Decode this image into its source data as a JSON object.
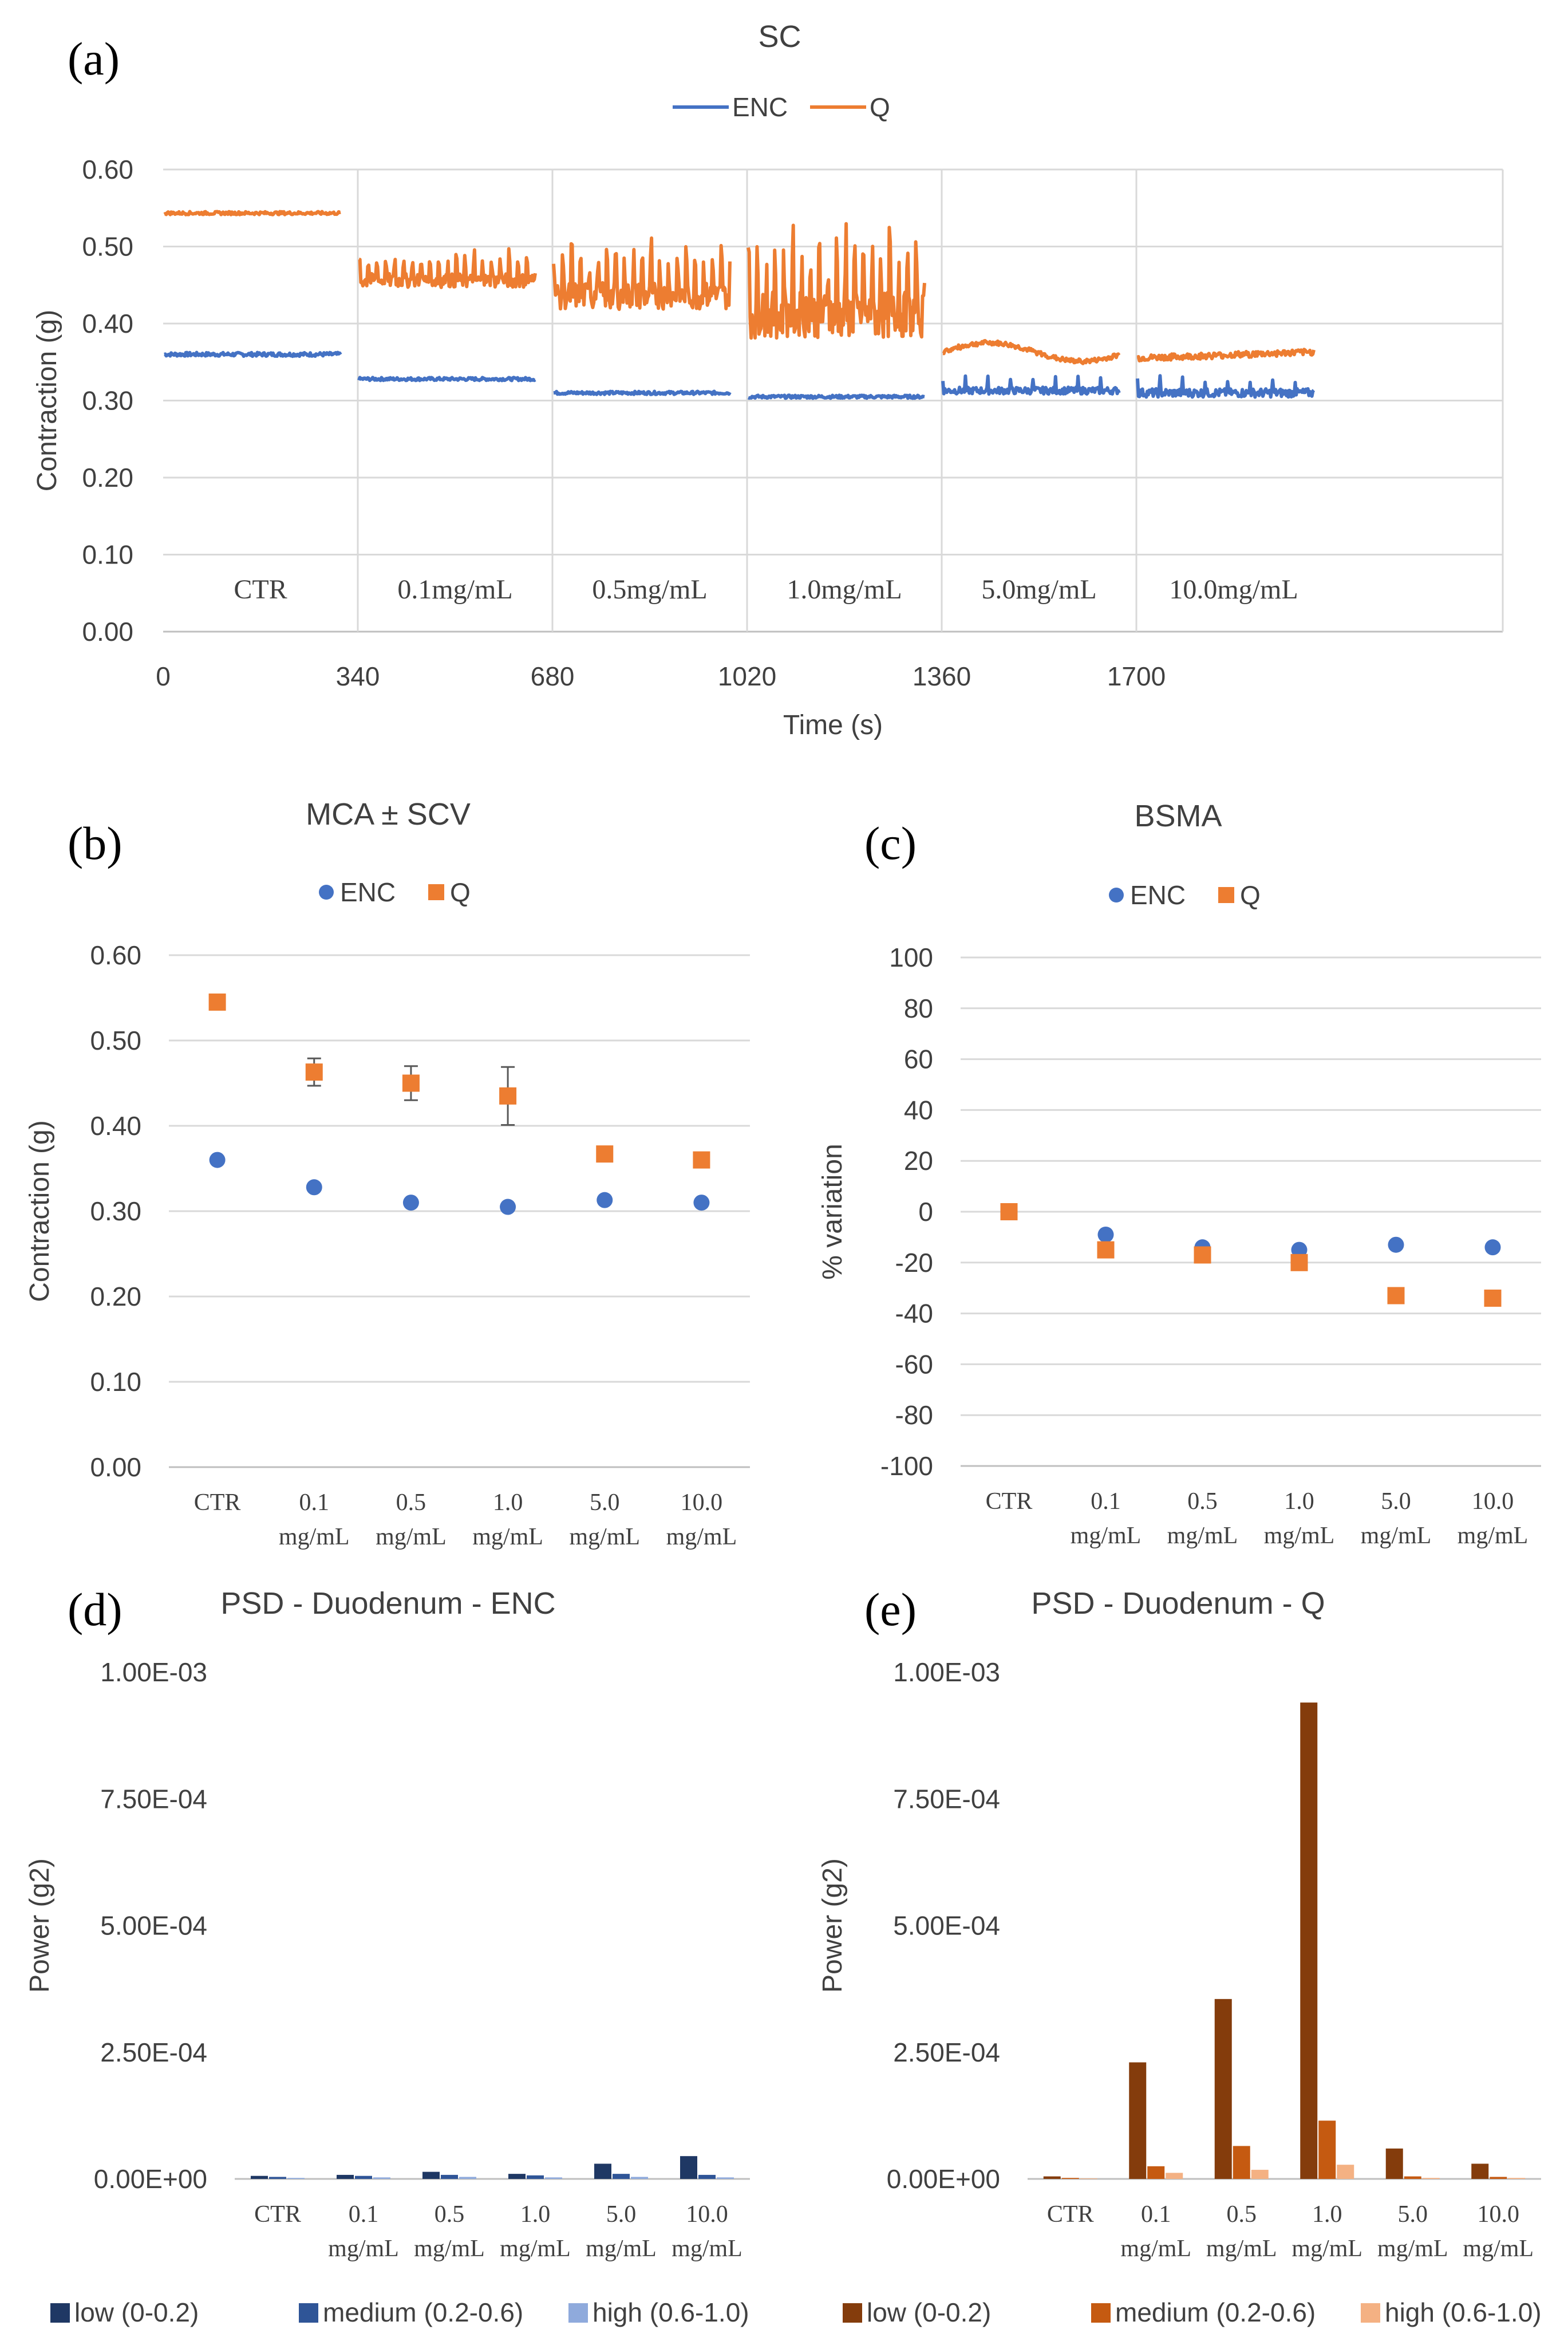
{
  "chart_data": [
    {
      "panel_label": "(a)",
      "type": "line",
      "title": "SC",
      "xlabel": "Time (s)",
      "ylabel": "Contraction (g)",
      "xlim": [
        0,
        2340
      ],
      "ylim": [
        0,
        0.6
      ],
      "x_ticks": [
        "0",
        "340",
        "680",
        "1020",
        "1360",
        "1700"
      ],
      "y_ticks": [
        "0.00",
        "0.10",
        "0.20",
        "0.30",
        "0.40",
        "0.50",
        "0.60"
      ],
      "legend": [
        "ENC",
        "Q"
      ],
      "segments": [
        "CTR",
        "0.1mg/mL",
        "0.5mg/mL",
        "1.0mg/mL",
        "5.0mg/mL",
        "10.0mg/mL"
      ],
      "series": [
        {
          "name": "ENC",
          "color": "#4472C4",
          "segment_means": [
            0.36,
            0.328,
            0.31,
            0.305,
            0.313,
            0.31
          ]
        },
        {
          "name": "Q",
          "color": "#ED7D31",
          "segment_means": [
            0.545,
            0.463,
            0.45,
            0.435,
            0.367,
            0.36
          ]
        }
      ]
    },
    {
      "panel_label": "(b)",
      "type": "scatter",
      "title": "MCA ± SCV",
      "xlabel": "",
      "ylabel": "Contraction (g)",
      "ylim": [
        0,
        0.6
      ],
      "y_ticks": [
        "0.00",
        "0.10",
        "0.20",
        "0.30",
        "0.40",
        "0.50",
        "0.60"
      ],
      "categories": [
        [
          "CTR",
          ""
        ],
        [
          "0.1",
          "mg/mL"
        ],
        [
          "0.5",
          "mg/mL"
        ],
        [
          "1.0",
          "mg/mL"
        ],
        [
          "5.0",
          "mg/mL"
        ],
        [
          "10.0",
          "mg/mL"
        ]
      ],
      "legend": [
        "ENC",
        "Q"
      ],
      "series": [
        {
          "name": "ENC",
          "color": "#4472C4",
          "values": [
            0.36,
            0.328,
            0.31,
            0.305,
            0.313,
            0.31
          ],
          "errors": [
            0.002,
            0.003,
            0.002,
            0.002,
            0.003,
            0.003
          ]
        },
        {
          "name": "Q",
          "color": "#ED7D31",
          "values": [
            0.545,
            0.463,
            0.45,
            0.435,
            0.367,
            0.36
          ],
          "errors": [
            0.002,
            0.016,
            0.02,
            0.034,
            0.004,
            0.004
          ]
        }
      ]
    },
    {
      "panel_label": "(c)",
      "type": "scatter",
      "title": "BSMA",
      "xlabel": "",
      "ylabel": "% variation",
      "ylim": [
        -100,
        100
      ],
      "y_ticks": [
        "-100",
        "-80",
        "-60",
        "-40",
        "-20",
        "0",
        "20",
        "40",
        "60",
        "80",
        "100"
      ],
      "categories": [
        [
          "CTR",
          ""
        ],
        [
          "0.1",
          "mg/mL"
        ],
        [
          "0.5",
          "mg/mL"
        ],
        [
          "1.0",
          "mg/mL"
        ],
        [
          "5.0",
          "mg/mL"
        ],
        [
          "10.0",
          "mg/mL"
        ]
      ],
      "legend": [
        "ENC",
        "Q"
      ],
      "series": [
        {
          "name": "ENC",
          "color": "#4472C4",
          "values": [
            0,
            -9,
            -14,
            -15,
            -13,
            -14
          ]
        },
        {
          "name": "Q",
          "color": "#ED7D31",
          "values": [
            0,
            -15,
            -17,
            -20,
            -33,
            -34
          ]
        }
      ]
    },
    {
      "panel_label": "(d)",
      "type": "bar",
      "title": "PSD - Duodenum - ENC",
      "xlabel": "",
      "ylabel": "Power (g2)",
      "ylim": [
        0,
        0.001
      ],
      "y_ticks": [
        "0.00E+00",
        "2.50E-04",
        "5.00E-04",
        "7.50E-04",
        "1.00E-03"
      ],
      "categories": [
        [
          "CTR",
          ""
        ],
        [
          "0.1",
          "mg/mL"
        ],
        [
          "0.5",
          "mg/mL"
        ],
        [
          "1.0",
          "mg/mL"
        ],
        [
          "5.0",
          "mg/mL"
        ],
        [
          "10.0",
          "mg/mL"
        ]
      ],
      "series": [
        {
          "name": "low (0-0.2)",
          "color": "#1F3864",
          "values": [
            6e-06,
            8e-06,
            1.4e-05,
            1e-05,
            3e-05,
            4.5e-05
          ]
        },
        {
          "name": "medium (0.2-0.6)",
          "color": "#2F5597",
          "values": [
            4e-06,
            6e-06,
            8e-06,
            7e-06,
            1e-05,
            8e-06
          ]
        },
        {
          "name": "high (0.6-1.0)",
          "color": "#8FAADC",
          "values": [
            2e-06,
            3e-06,
            4e-06,
            3e-06,
            4e-06,
            3e-06
          ]
        }
      ]
    },
    {
      "panel_label": "(e)",
      "type": "bar",
      "title": "PSD - Duodenum - Q",
      "xlabel": "",
      "ylabel": "Power (g2)",
      "ylim": [
        0,
        0.001
      ],
      "y_ticks": [
        "0.00E+00",
        "2.50E-04",
        "5.00E-04",
        "7.50E-04",
        "1.00E-03"
      ],
      "categories": [
        [
          "CTR",
          ""
        ],
        [
          "0.1",
          "mg/mL"
        ],
        [
          "0.5",
          "mg/mL"
        ],
        [
          "1.0",
          "mg/mL"
        ],
        [
          "5.0",
          "mg/mL"
        ],
        [
          "10.0",
          "mg/mL"
        ]
      ],
      "series": [
        {
          "name": "low (0-0.2)",
          "color": "#843C0C",
          "values": [
            5e-06,
            0.00023,
            0.000355,
            0.00094,
            6e-05,
            3e-05
          ]
        },
        {
          "name": "medium (0.2-0.6)",
          "color": "#C55A11",
          "values": [
            2e-06,
            2.5e-05,
            6.5e-05,
            0.000115,
            5e-06,
            4e-06
          ]
        },
        {
          "name": "high (0.6-1.0)",
          "color": "#F4B183",
          "values": [
            1e-06,
            1.2e-05,
            1.8e-05,
            2.8e-05,
            2e-06,
            2e-06
          ]
        }
      ]
    }
  ]
}
